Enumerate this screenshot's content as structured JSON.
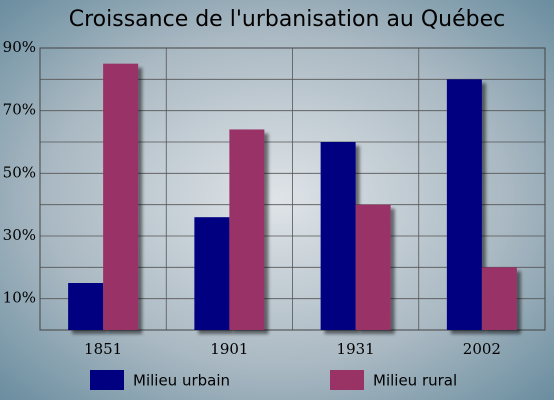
{
  "chart_data": {
    "type": "bar",
    "title": "Croissance de l'urbanisation au Québec",
    "categories": [
      "1851",
      "1901",
      "1931",
      "2002"
    ],
    "series": [
      {
        "name": "Milieu urbain",
        "color": "#000080",
        "values": [
          15,
          36,
          60,
          80
        ]
      },
      {
        "name": "Milieu rural",
        "color": "#993366",
        "values": [
          85,
          64,
          40,
          20
        ]
      }
    ],
    "ylim": [
      0,
      90
    ],
    "yticks": [
      {
        "value": 10,
        "label": "10%"
      },
      {
        "value": 30,
        "label": "30%"
      },
      {
        "value": 50,
        "label": "50%"
      },
      {
        "value": 70,
        "label": "70%"
      },
      {
        "value": 90,
        "label": "90%"
      }
    ],
    "minor_yticks": [
      0,
      20,
      40,
      60,
      80
    ],
    "grid": true,
    "legend": "bottom"
  }
}
